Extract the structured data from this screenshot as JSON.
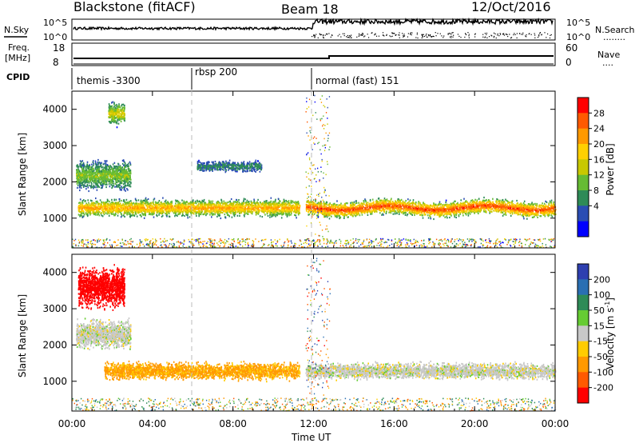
{
  "header": {
    "radar": "Blackstone (fitACF)",
    "beam": "Beam 18",
    "date": "12/Oct/2016"
  },
  "nsky_panel": {
    "left_label": "N.Sky",
    "right_label": "N.Search",
    "right_label_dots": "........",
    "tick_top": "10^5",
    "tick_bottom": "10^0"
  },
  "freq_panel": {
    "left_label_line1": "Freq.",
    "left_label_line2": "[MHz]",
    "left_ticks": [
      "18",
      "8"
    ],
    "right_label": "Nave",
    "right_label_dots": "....",
    "right_ticks": [
      "60",
      "0"
    ]
  },
  "cpid_panel": {
    "label": "CPID",
    "segments": [
      {
        "start_hour": 0,
        "text": "themis -3300"
      },
      {
        "start_hour": 6,
        "text": "rbsp 200"
      },
      {
        "start_hour": 11.8,
        "text": "normal (fast) 151"
      }
    ]
  },
  "time_axis": {
    "label": "Time UT",
    "ticks": [
      "00:00",
      "04:00",
      "08:00",
      "12:00",
      "16:00",
      "20:00",
      "00:00"
    ],
    "start_hour": 0,
    "end_hour": 24
  },
  "power_colorbar": {
    "label": "Power [dB]",
    "ticks": [
      "28",
      "24",
      "20",
      "16",
      "12",
      "8",
      "4"
    ],
    "colors": [
      "#ff0000",
      "#ff5a00",
      "#ff9900",
      "#ffd000",
      "#c8c800",
      "#66bb33",
      "#2e8b57",
      "#2a4db3",
      "#0000ff"
    ]
  },
  "velocity_colorbar": {
    "label_main": "Velocity [m s",
    "label_sup": "-1",
    "label_end": "]",
    "ticks": [
      "200",
      "100",
      "50",
      "15",
      "-15",
      "-50",
      "-100",
      "-200"
    ],
    "colors": [
      "#2e3fb0",
      "#2a6fb3",
      "#2e8b57",
      "#66cc33",
      "#c8c8c8",
      "#ffcc00",
      "#ff9900",
      "#ff5a00",
      "#ff0000"
    ]
  },
  "chart_data": {
    "type": "heatmap",
    "x_range": [
      0,
      24
    ],
    "y_range": [
      180,
      4500
    ],
    "y_ticks": [
      1000,
      2000,
      3000,
      4000
    ],
    "y_label": "Slant Range [km]",
    "power_panel": {
      "description_bands": [
        {
          "x_start": 0.3,
          "x_end": 11.3,
          "range_center": 1300,
          "range_width": 300,
          "power_peak": 22
        },
        {
          "x_start": 11.6,
          "x_end": 24,
          "range_center": 1300,
          "range_width": 280,
          "power_peak": 28
        },
        {
          "x_start": 0.2,
          "x_end": 2.9,
          "range_center": 2200,
          "range_width": 500,
          "power_peak": 12
        },
        {
          "x_start": 1.8,
          "x_end": 2.6,
          "range_center": 3900,
          "range_width": 400,
          "power_peak": 16
        },
        {
          "x_start": 6.2,
          "x_end": 9.4,
          "range_center": 2450,
          "range_width": 200,
          "power_peak": 6
        }
      ]
    },
    "velocity_panel": {
      "description_bands": [
        {
          "x_start": 1.6,
          "x_end": 11.3,
          "range_center": 1300,
          "range_width": 300,
          "velocity": -40
        },
        {
          "x_start": 11.6,
          "x_end": 24,
          "range_center": 1300,
          "range_width": 280,
          "velocity": 0
        },
        {
          "x_start": 0.2,
          "x_end": 2.9,
          "range_center": 2300,
          "range_width": 500,
          "velocity": 0
        },
        {
          "x_start": 0.3,
          "x_end": 2.6,
          "range_center": 3600,
          "range_width": 700,
          "velocity": -220
        }
      ]
    }
  }
}
